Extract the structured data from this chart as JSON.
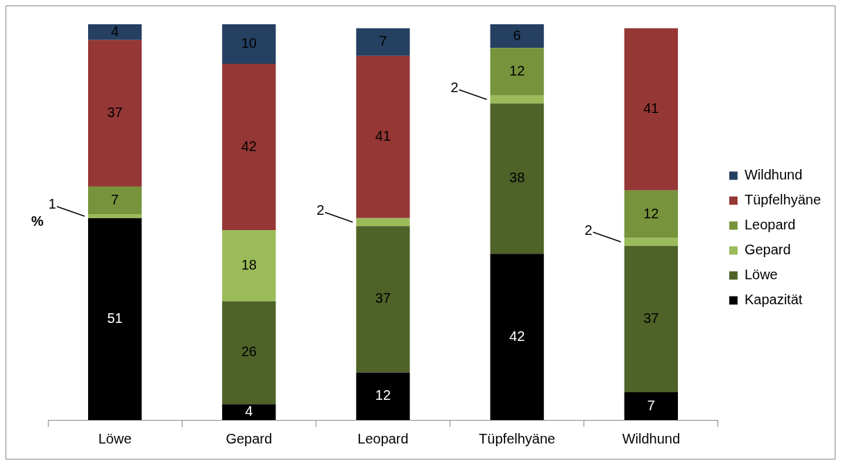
{
  "chart_data": {
    "type": "bar",
    "stacked": true,
    "ylabel": "%",
    "categories": [
      "Löwe",
      "Gepard",
      "Leopard",
      "Tüpfelhyäne",
      "Wildhund"
    ],
    "series": [
      {
        "name": "Kapazität",
        "color": "#000000",
        "values": [
          51,
          4,
          12,
          42,
          7
        ]
      },
      {
        "name": "Löwe",
        "color": "#4f6228",
        "values": [
          null,
          26,
          37,
          38,
          37
        ]
      },
      {
        "name": "Gepard",
        "color": "#9bbb59",
        "values": [
          1,
          18,
          2,
          2,
          2
        ]
      },
      {
        "name": "Leopard",
        "color": "#77933c",
        "values": [
          7,
          null,
          null,
          12,
          12
        ]
      },
      {
        "name": "Tüpfelhyäne",
        "color": "#953735",
        "values": [
          37,
          42,
          41,
          null,
          41
        ]
      },
      {
        "name": "Wildhund",
        "color": "#254061",
        "values": [
          4,
          10,
          7,
          6,
          null
        ]
      }
    ],
    "data_labels": true,
    "legend": "right",
    "grid": false
  }
}
